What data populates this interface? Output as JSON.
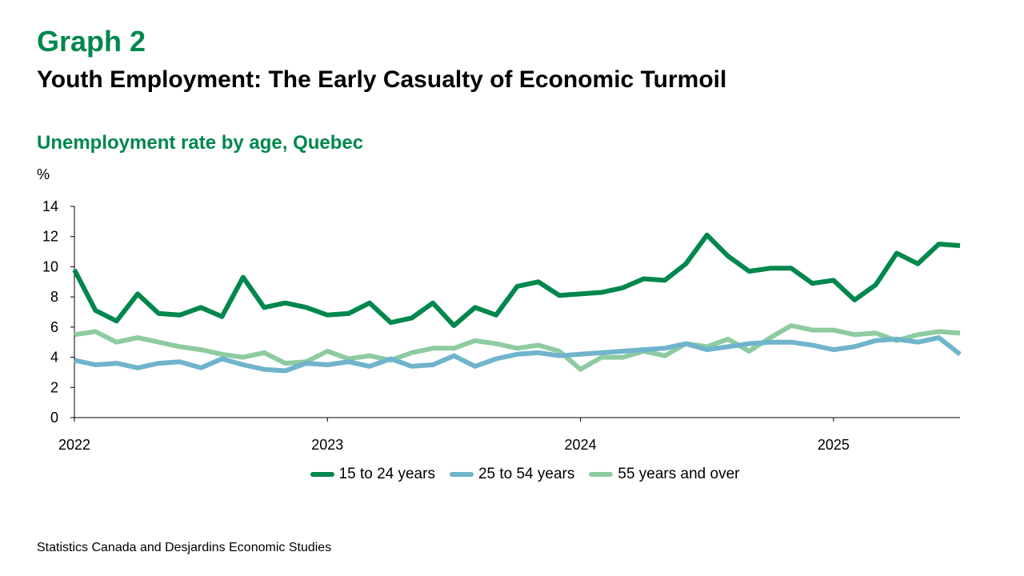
{
  "header": {
    "graph_label": "Graph 2",
    "title": "Youth Employment: The Early Casualty of Economic Turmoil"
  },
  "chart_data": {
    "type": "line",
    "title": "Unemployment rate by age, Quebec",
    "ylabel": "%",
    "xlabel": "",
    "ylim": [
      0,
      14
    ],
    "yticks": [
      0,
      2,
      4,
      6,
      8,
      10,
      12,
      14
    ],
    "x": [
      "2022-01",
      "2022-02",
      "2022-03",
      "2022-04",
      "2022-05",
      "2022-06",
      "2022-07",
      "2022-08",
      "2022-09",
      "2022-10",
      "2022-11",
      "2022-12",
      "2023-01",
      "2023-02",
      "2023-03",
      "2023-04",
      "2023-05",
      "2023-06",
      "2023-07",
      "2023-08",
      "2023-09",
      "2023-10",
      "2023-11",
      "2023-12",
      "2024-01",
      "2024-02",
      "2024-03",
      "2024-04",
      "2024-05",
      "2024-06",
      "2024-07",
      "2024-08",
      "2024-09",
      "2024-10",
      "2024-11",
      "2024-12",
      "2025-01",
      "2025-02",
      "2025-03",
      "2025-04",
      "2025-05",
      "2025-06",
      "2025-07"
    ],
    "xtick_labels": [
      "2022",
      "2023",
      "2024",
      "2025"
    ],
    "grid": false,
    "legend_position": "bottom",
    "series": [
      {
        "name": "15 to 24 years",
        "color": "#00874D",
        "values": [
          9.8,
          7.1,
          6.4,
          8.2,
          6.9,
          6.8,
          7.3,
          6.7,
          9.3,
          7.3,
          7.6,
          7.3,
          6.8,
          6.9,
          7.6,
          6.3,
          6.6,
          7.6,
          6.1,
          7.3,
          6.8,
          8.7,
          9.0,
          8.1,
          8.2,
          8.3,
          8.6,
          9.2,
          9.1,
          10.2,
          12.1,
          10.7,
          9.7,
          9.9,
          9.9,
          8.9,
          9.1,
          7.8,
          8.8,
          10.9,
          10.2,
          11.5,
          11.4
        ]
      },
      {
        "name": "25 to 54 years",
        "color": "#6FB4CC",
        "values": [
          3.8,
          3.5,
          3.6,
          3.3,
          3.6,
          3.7,
          3.3,
          3.9,
          3.5,
          3.2,
          3.1,
          3.6,
          3.5,
          3.7,
          3.4,
          3.9,
          3.4,
          3.5,
          4.1,
          3.4,
          3.9,
          4.2,
          4.3,
          4.1,
          4.2,
          4.3,
          4.4,
          4.5,
          4.6,
          4.9,
          4.5,
          4.7,
          4.9,
          5.0,
          5.0,
          4.8,
          4.5,
          4.7,
          5.1,
          5.2,
          5.0,
          5.3,
          4.2
        ]
      },
      {
        "name": "55 years and over",
        "color": "#8ECBA1",
        "values": [
          5.5,
          5.7,
          5.0,
          5.3,
          5.0,
          4.7,
          4.5,
          4.2,
          4.0,
          4.3,
          3.6,
          3.7,
          4.4,
          3.9,
          4.1,
          3.8,
          4.3,
          4.6,
          4.6,
          5.1,
          4.9,
          4.6,
          4.8,
          4.4,
          3.2,
          4.0,
          4.0,
          4.4,
          4.1,
          4.9,
          4.7,
          5.2,
          4.4,
          5.3,
          6.1,
          5.8,
          5.8,
          5.5,
          5.6,
          5.1,
          5.5,
          5.7,
          5.6
        ]
      }
    ]
  },
  "footer": {
    "source": "Statistics Canada and Desjardins Economic Studies"
  }
}
